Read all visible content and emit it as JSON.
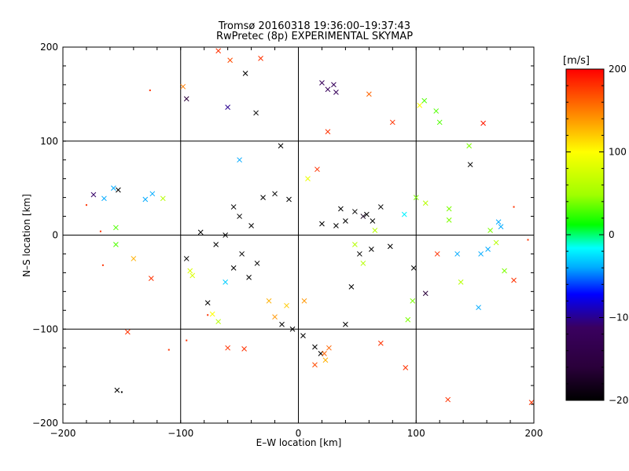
{
  "chart_data": {
    "type": "scatter",
    "title": "Tromsø 20160318 19:36:00–19:37:43",
    "subtitle": "RwPretec (8p) EXPERIMENTAL SKYMAP",
    "xlabel": "E–W location [km]",
    "ylabel": "N–S location [km]",
    "xlim": [
      -200,
      200
    ],
    "ylim": [
      -200,
      200
    ],
    "x_ticks": [
      -200,
      -100,
      0,
      100,
      200
    ],
    "y_ticks": [
      -200,
      -100,
      0,
      100,
      200
    ],
    "x_tick_labels": [
      "−200",
      "−100",
      "0",
      "100",
      "200"
    ],
    "y_tick_labels": [
      "−200",
      "−100",
      "0",
      "100",
      "200"
    ],
    "grid": true,
    "colorbar": {
      "label": "[m/s]",
      "range": [
        -200,
        200
      ],
      "ticks": [
        200,
        100,
        0,
        -100,
        -200
      ],
      "tick_labels": [
        "200",
        "100",
        "0",
        "−100",
        "−200"
      ],
      "colorscale": [
        "#000000",
        "#2a003a",
        "#3a0060",
        "#0000ff",
        "#00aaff",
        "#00ffff",
        "#00ff00",
        "#a0ff00",
        "#ffff00",
        "#ffa000",
        "#ff5000",
        "#ff0000"
      ]
    },
    "marker_types": [
      "dot (meteor detection)",
      "x (meteor detection)"
    ],
    "points": [
      {
        "x": -68,
        "y": 196,
        "v": 180,
        "m": "x"
      },
      {
        "x": -58,
        "y": 186,
        "v": 170,
        "m": "x"
      },
      {
        "x": -45,
        "y": 172,
        "v": -200,
        "m": "x"
      },
      {
        "x": -32,
        "y": 188,
        "v": 180,
        "m": "x"
      },
      {
        "x": -98,
        "y": 158,
        "v": 150,
        "m": "x"
      },
      {
        "x": -95,
        "y": 145,
        "v": -160,
        "m": "x"
      },
      {
        "x": -60,
        "y": 136,
        "v": -100,
        "m": "x"
      },
      {
        "x": -36,
        "y": 130,
        "v": -200,
        "m": "x"
      },
      {
        "x": 20,
        "y": 162,
        "v": -120,
        "m": "x"
      },
      {
        "x": 25,
        "y": 155,
        "v": -120,
        "m": "x"
      },
      {
        "x": 32,
        "y": 152,
        "v": -120,
        "m": "x"
      },
      {
        "x": 30,
        "y": 160,
        "v": -120,
        "m": "x"
      },
      {
        "x": 107,
        "y": 143,
        "v": 30,
        "m": "x"
      },
      {
        "x": 117,
        "y": 132,
        "v": 30,
        "m": "x"
      },
      {
        "x": 120,
        "y": 120,
        "v": 30,
        "m": "x"
      },
      {
        "x": 157,
        "y": 119,
        "v": 190,
        "m": "x"
      },
      {
        "x": 145,
        "y": 95,
        "v": 40,
        "m": "x"
      },
      {
        "x": 146,
        "y": 75,
        "v": -200,
        "m": "x"
      },
      {
        "x": 60,
        "y": 150,
        "v": 160,
        "m": "x"
      },
      {
        "x": 103,
        "y": 138,
        "v": 100,
        "m": "x"
      },
      {
        "x": 80,
        "y": 120,
        "v": 180,
        "m": "x"
      },
      {
        "x": -50,
        "y": 80,
        "v": -40,
        "m": "x"
      },
      {
        "x": -174,
        "y": 43,
        "v": -110,
        "m": "x"
      },
      {
        "x": -165,
        "y": 39,
        "v": -40,
        "m": "x"
      },
      {
        "x": -157,
        "y": 50,
        "v": -40,
        "m": "x"
      },
      {
        "x": -153,
        "y": 48,
        "v": -200,
        "m": "x"
      },
      {
        "x": -130,
        "y": 38,
        "v": -40,
        "m": "x"
      },
      {
        "x": -124,
        "y": 44,
        "v": -40,
        "m": "x"
      },
      {
        "x": -115,
        "y": 39,
        "v": 60,
        "m": "x"
      },
      {
        "x": -155,
        "y": 8,
        "v": 30,
        "m": "x"
      },
      {
        "x": -155,
        "y": -10,
        "v": 30,
        "m": "x"
      },
      {
        "x": -140,
        "y": -25,
        "v": 130,
        "m": "x"
      },
      {
        "x": -145,
        "y": -103,
        "v": 180,
        "m": "x"
      },
      {
        "x": -154,
        "y": -165,
        "v": -200,
        "m": "x"
      },
      {
        "x": -125,
        "y": -46,
        "v": 180,
        "m": "x"
      },
      {
        "x": -77,
        "y": -72,
        "v": -200,
        "m": "x"
      },
      {
        "x": -73,
        "y": -84,
        "v": 100,
        "m": "x"
      },
      {
        "x": -92,
        "y": -38,
        "v": 80,
        "m": "x"
      },
      {
        "x": -90,
        "y": -43,
        "v": 80,
        "m": "x"
      },
      {
        "x": -62,
        "y": -50,
        "v": -30,
        "m": "x"
      },
      {
        "x": -46,
        "y": -121,
        "v": 180,
        "m": "x"
      },
      {
        "x": -20,
        "y": -87,
        "v": 140,
        "m": "x"
      },
      {
        "x": -14,
        "y": -95,
        "v": -200,
        "m": "x"
      },
      {
        "x": -5,
        "y": -100,
        "v": -200,
        "m": "x"
      },
      {
        "x": 4,
        "y": -107,
        "v": -200,
        "m": "x"
      },
      {
        "x": 14,
        "y": -119,
        "v": -200,
        "m": "x"
      },
      {
        "x": 19,
        "y": -126,
        "v": -200,
        "m": "x"
      },
      {
        "x": 26,
        "y": -120,
        "v": 160,
        "m": "x"
      },
      {
        "x": 22,
        "y": -126,
        "v": 160,
        "m": "x"
      },
      {
        "x": 14,
        "y": -138,
        "v": 170,
        "m": "x"
      },
      {
        "x": 23,
        "y": -133,
        "v": 130,
        "m": "x"
      },
      {
        "x": 40,
        "y": -95,
        "v": -200,
        "m": "x"
      },
      {
        "x": 70,
        "y": -115,
        "v": 180,
        "m": "x"
      },
      {
        "x": 91,
        "y": -141,
        "v": 180,
        "m": "x"
      },
      {
        "x": 93,
        "y": -90,
        "v": 40,
        "m": "x"
      },
      {
        "x": 97,
        "y": -70,
        "v": 40,
        "m": "x"
      },
      {
        "x": 108,
        "y": -62,
        "v": -160,
        "m": "x"
      },
      {
        "x": 127,
        "y": -175,
        "v": 180,
        "m": "x"
      },
      {
        "x": 198,
        "y": -178,
        "v": 180,
        "m": "x"
      },
      {
        "x": 183,
        "y": -48,
        "v": 180,
        "m": "x"
      },
      {
        "x": 175,
        "y": -38,
        "v": 40,
        "m": "x"
      },
      {
        "x": 155,
        "y": -20,
        "v": -40,
        "m": "x"
      },
      {
        "x": 161,
        "y": -15,
        "v": -40,
        "m": "x"
      },
      {
        "x": 168,
        "y": -8,
        "v": 60,
        "m": "x"
      },
      {
        "x": 135,
        "y": -20,
        "v": -40,
        "m": "x"
      },
      {
        "x": 118,
        "y": -20,
        "v": 180,
        "m": "x"
      },
      {
        "x": 138,
        "y": -50,
        "v": 60,
        "m": "x"
      },
      {
        "x": 153,
        "y": -77,
        "v": -40,
        "m": "x"
      },
      {
        "x": 172,
        "y": 9,
        "v": -40,
        "m": "x"
      },
      {
        "x": 170,
        "y": 14,
        "v": -40,
        "m": "x"
      },
      {
        "x": 163,
        "y": 5,
        "v": 40,
        "m": "x"
      },
      {
        "x": 128,
        "y": 16,
        "v": 40,
        "m": "x"
      },
      {
        "x": 128,
        "y": 28,
        "v": 40,
        "m": "x"
      },
      {
        "x": 100,
        "y": 40,
        "v": 40,
        "m": "x"
      },
      {
        "x": 108,
        "y": 34,
        "v": 60,
        "m": "x"
      },
      {
        "x": 90,
        "y": 22,
        "v": -20,
        "m": "x"
      },
      {
        "x": 70,
        "y": 30,
        "v": -200,
        "m": "x"
      },
      {
        "x": 58,
        "y": 22,
        "v": -200,
        "m": "x"
      },
      {
        "x": 63,
        "y": 15,
        "v": -200,
        "m": "x"
      },
      {
        "x": 55,
        "y": 20,
        "v": -180,
        "m": "x"
      },
      {
        "x": 48,
        "y": 25,
        "v": -200,
        "m": "x"
      },
      {
        "x": 36,
        "y": 28,
        "v": -200,
        "m": "x"
      },
      {
        "x": 40,
        "y": 15,
        "v": -200,
        "m": "x"
      },
      {
        "x": 32,
        "y": 10,
        "v": -200,
        "m": "x"
      },
      {
        "x": 20,
        "y": 12,
        "v": -200,
        "m": "x"
      },
      {
        "x": -30,
        "y": 40,
        "v": -200,
        "m": "x"
      },
      {
        "x": -20,
        "y": 44,
        "v": -200,
        "m": "x"
      },
      {
        "x": -8,
        "y": 38,
        "v": -200,
        "m": "x"
      },
      {
        "x": -55,
        "y": 30,
        "v": -200,
        "m": "x"
      },
      {
        "x": -50,
        "y": 20,
        "v": -200,
        "m": "x"
      },
      {
        "x": -40,
        "y": 10,
        "v": -200,
        "m": "x"
      },
      {
        "x": -62,
        "y": 0,
        "v": -200,
        "m": "x"
      },
      {
        "x": -83,
        "y": 3,
        "v": -200,
        "m": "x"
      },
      {
        "x": -95,
        "y": -25,
        "v": -200,
        "m": "x"
      },
      {
        "x": -70,
        "y": -10,
        "v": -200,
        "m": "x"
      },
      {
        "x": -48,
        "y": -20,
        "v": -200,
        "m": "x"
      },
      {
        "x": -35,
        "y": -30,
        "v": -200,
        "m": "x"
      },
      {
        "x": -55,
        "y": -35,
        "v": -200,
        "m": "x"
      },
      {
        "x": -42,
        "y": -45,
        "v": -200,
        "m": "x"
      },
      {
        "x": 52,
        "y": -20,
        "v": -200,
        "m": "x"
      },
      {
        "x": 62,
        "y": -15,
        "v": -200,
        "m": "x"
      },
      {
        "x": 78,
        "y": -12,
        "v": -200,
        "m": "x"
      },
      {
        "x": 98,
        "y": -35,
        "v": -200,
        "m": "x"
      },
      {
        "x": 45,
        "y": -55,
        "v": -200,
        "m": "x"
      },
      {
        "x": 55,
        "y": -30,
        "v": 60,
        "m": "x"
      },
      {
        "x": 48,
        "y": -10,
        "v": 60,
        "m": "x"
      },
      {
        "x": 65,
        "y": 5,
        "v": 60,
        "m": "x"
      },
      {
        "x": -25,
        "y": -70,
        "v": 130,
        "m": "x"
      },
      {
        "x": -10,
        "y": -75,
        "v": 120,
        "m": "x"
      },
      {
        "x": 5,
        "y": -70,
        "v": 140,
        "m": "x"
      },
      {
        "x": -60,
        "y": -120,
        "v": 180,
        "m": "x"
      },
      {
        "x": -68,
        "y": -92,
        "v": 60,
        "m": "x"
      },
      {
        "x": 8,
        "y": 60,
        "v": 90,
        "m": "x"
      },
      {
        "x": 16,
        "y": 70,
        "v": 180,
        "m": "x"
      },
      {
        "x": -15,
        "y": 95,
        "v": -200,
        "m": "x"
      },
      {
        "x": 25,
        "y": 110,
        "v": 180,
        "m": "x"
      },
      {
        "x": -150,
        "y": -167,
        "v": -200,
        "m": "dot"
      },
      {
        "x": -126,
        "y": 154,
        "v": 180,
        "m": "dot"
      },
      {
        "x": -180,
        "y": 32,
        "v": 180,
        "m": "dot"
      },
      {
        "x": -168,
        "y": 4,
        "v": 180,
        "m": "dot"
      },
      {
        "x": -166,
        "y": -32,
        "v": 180,
        "m": "dot"
      },
      {
        "x": -110,
        "y": -122,
        "v": 180,
        "m": "dot"
      },
      {
        "x": -95,
        "y": -112,
        "v": 180,
        "m": "dot"
      },
      {
        "x": -77,
        "y": -85,
        "v": 180,
        "m": "dot"
      },
      {
        "x": 183,
        "y": 30,
        "v": 180,
        "m": "dot"
      },
      {
        "x": 195,
        "y": -5,
        "v": 180,
        "m": "dot"
      }
    ]
  }
}
